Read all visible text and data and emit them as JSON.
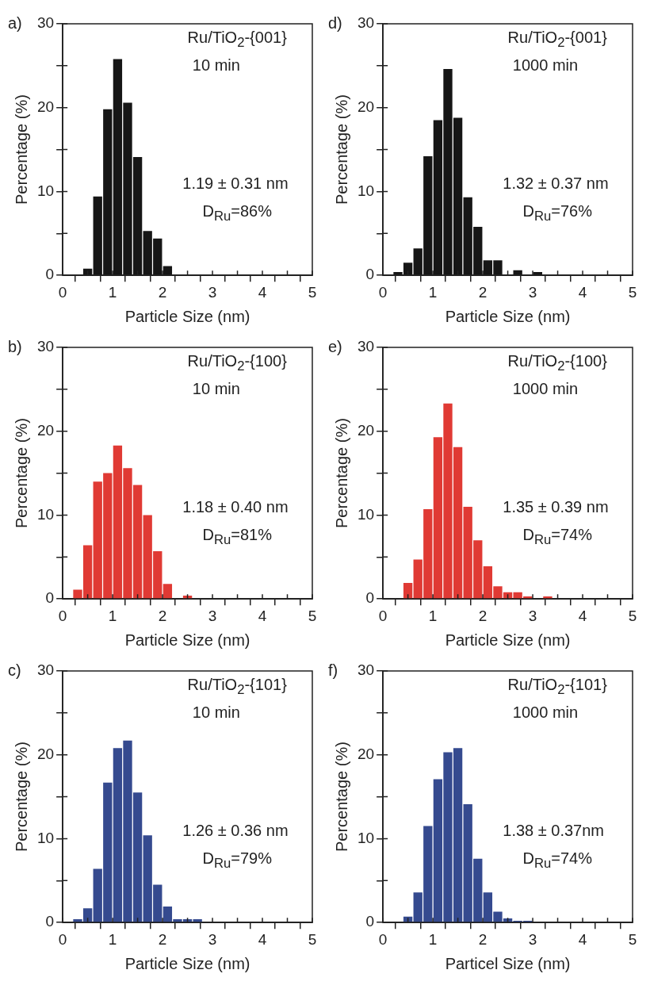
{
  "chart_data": [
    {
      "type": "histogram",
      "title": "a)",
      "xlabel": "Particle Size (nm)",
      "ylabel": "Percentage (%)",
      "color": "#161616",
      "bins": [
        0.4,
        0.6,
        0.8,
        1.0,
        1.2,
        1.4,
        1.6,
        1.8,
        2.0,
        2.2
      ],
      "values": [
        0.8,
        9.4,
        19.8,
        25.8,
        20.6,
        14.1,
        5.3,
        4.4,
        1.1
      ],
      "xlim": [
        0,
        5
      ],
      "xticks": [
        0,
        {
          "value": 0.5,
          "label": null
        },
        1,
        {
          "value": 1.5,
          "label": null
        },
        2,
        {
          "value": 2.5,
          "label": null
        },
        3,
        {
          "value": 3.5,
          "label": null
        },
        4,
        {
          "value": 4.5,
          "label": null
        },
        5
      ],
      "ylim": [
        0,
        30
      ],
      "yticks": [
        0,
        {
          "value": 5,
          "label": null
        },
        10,
        {
          "value": 15,
          "label": null
        },
        20,
        {
          "value": 25,
          "label": null
        },
        30
      ],
      "annotations": [
        "Ru/TiO$_{2}$-{001}",
        "10 min",
        "1.19 ± 0.31 nm",
        "D$_{Ru}$=86%"
      ]
    },
    {
      "type": "histogram",
      "title": "d)",
      "xlabel": "Particle Size (nm)",
      "ylabel": "Percentage (%)",
      "color": "#161616",
      "bins": [
        0.2,
        0.4,
        0.6,
        0.8,
        1.0,
        1.2,
        1.4,
        1.6,
        1.8,
        2.0,
        2.2,
        2.4,
        2.6,
        2.8,
        3.0,
        3.2
      ],
      "values": [
        0.4,
        1.5,
        3.2,
        14.2,
        18.5,
        24.6,
        18.8,
        9.3,
        5.8,
        1.8,
        1.8,
        0,
        0.6,
        0,
        0.4
      ],
      "xlim": [
        0,
        5
      ],
      "xticks": [
        0,
        {
          "value": 0.5,
          "label": null
        },
        1,
        {
          "value": 1.5,
          "label": null
        },
        2,
        {
          "value": 2.5,
          "label": null
        },
        3,
        {
          "value": 3.5,
          "label": null
        },
        4,
        {
          "value": 4.5,
          "label": null
        },
        5
      ],
      "ylim": [
        0,
        30
      ],
      "yticks": [
        0,
        {
          "value": 5,
          "label": null
        },
        10,
        {
          "value": 15,
          "label": null
        },
        20,
        {
          "value": 25,
          "label": null
        },
        30
      ],
      "annotations": [
        "Ru/TiO$_{2}$-{001}",
        "1000 min",
        "1.32 ± 0.37 nm",
        "D$_{Ru}$=76%"
      ]
    },
    {
      "type": "histogram",
      "title": "b)",
      "xlabel": "Particle Size (nm)",
      "ylabel": "Percentage (%)",
      "color": "#e03a34",
      "bins": [
        0.2,
        0.4,
        0.6,
        0.8,
        1.0,
        1.2,
        1.4,
        1.6,
        1.8,
        2.0,
        2.2,
        2.4,
        2.6
      ],
      "values": [
        1.1,
        6.4,
        14,
        15,
        18.3,
        15.6,
        13.6,
        10,
        5.7,
        1.8,
        0,
        0.4
      ],
      "xlim": [
        0,
        5
      ],
      "xticks": [
        0,
        {
          "value": 0.5,
          "label": null
        },
        1,
        {
          "value": 1.5,
          "label": null
        },
        2,
        {
          "value": 2.5,
          "label": null
        },
        3,
        {
          "value": 3.5,
          "label": null
        },
        4,
        {
          "value": 4.5,
          "label": null
        },
        5
      ],
      "ylim": [
        0,
        30
      ],
      "yticks": [
        0,
        {
          "value": 5,
          "label": null
        },
        10,
        {
          "value": 15,
          "label": null
        },
        20,
        {
          "value": 25,
          "label": null
        },
        30
      ],
      "annotations": [
        "Ru/TiO$_{2}$-{100}",
        "10 min",
        "1.18 ± 0.40 nm",
        "D$_{Ru}$=81%"
      ]
    },
    {
      "type": "histogram",
      "title": "e)",
      "xlabel": "Particle Size (nm)",
      "ylabel": "Percentage (%)",
      "color": "#e03a34",
      "bins": [
        0.4,
        0.6,
        0.8,
        1.0,
        1.2,
        1.4,
        1.6,
        1.8,
        2.0,
        2.2,
        2.4,
        2.6,
        2.8,
        3.0,
        3.2,
        3.4
      ],
      "values": [
        1.9,
        4.7,
        10.7,
        19.3,
        23.3,
        18.1,
        11,
        7,
        3.9,
        1.5,
        0.8,
        0.8,
        0.3,
        0,
        0.3
      ],
      "xlim": [
        0,
        5
      ],
      "xticks": [
        0,
        {
          "value": 0.5,
          "label": null
        },
        1,
        {
          "value": 1.5,
          "label": null
        },
        2,
        {
          "value": 2.5,
          "label": null
        },
        3,
        {
          "value": 3.5,
          "label": null
        },
        4,
        {
          "value": 4.5,
          "label": null
        },
        5
      ],
      "ylim": [
        0,
        30
      ],
      "yticks": [
        0,
        {
          "value": 5,
          "label": null
        },
        10,
        {
          "value": 15,
          "label": null
        },
        20,
        {
          "value": 25,
          "label": null
        },
        30
      ],
      "annotations": [
        "Ru/TiO$_{2}$-{100}",
        "1000 min",
        "1.35 ± 0.39 nm",
        "D$_{Ru}$=74%"
      ]
    },
    {
      "type": "histogram",
      "title": "c)",
      "xlabel": "Particle Size (nm)",
      "ylabel": "Percentage (%)",
      "color": "#354a8f",
      "bins": [
        0.2,
        0.4,
        0.6,
        0.8,
        1.0,
        1.2,
        1.4,
        1.6,
        1.8,
        2.0,
        2.2,
        2.4,
        2.6,
        2.8
      ],
      "values": [
        0.4,
        1.7,
        6.4,
        16.7,
        20.8,
        21.7,
        15.5,
        10.4,
        4.5,
        1.9,
        0.4,
        0.4,
        0.4
      ],
      "xlim": [
        0,
        5
      ],
      "xticks": [
        0,
        {
          "value": 0.5,
          "label": null
        },
        1,
        {
          "value": 1.5,
          "label": null
        },
        2,
        {
          "value": 2.5,
          "label": null
        },
        3,
        {
          "value": 3.5,
          "label": null
        },
        4,
        {
          "value": 4.5,
          "label": null
        },
        5
      ],
      "ylim": [
        0,
        30
      ],
      "yticks": [
        0,
        {
          "value": 5,
          "label": null
        },
        10,
        {
          "value": 15,
          "label": null
        },
        20,
        {
          "value": 25,
          "label": null
        },
        30
      ],
      "annotations": [
        "Ru/TiO$_{2}$-{101}",
        "10 min",
        "1.26 ± 0.36 nm",
        "D$_{Ru}$=79%"
      ]
    },
    {
      "type": "histogram",
      "title": "f)",
      "xlabel": "Particel Size (nm)",
      "ylabel": "Percentage (%)",
      "color": "#354a8f",
      "bins": [
        0.4,
        0.6,
        0.8,
        1.0,
        1.2,
        1.4,
        1.6,
        1.8,
        2.0,
        2.2,
        2.4,
        2.6,
        2.8,
        3.0
      ],
      "values": [
        0.7,
        3.6,
        11.5,
        17.1,
        20.3,
        20.8,
        14.1,
        7.6,
        3.6,
        1.3,
        0.5,
        0.2,
        0.2
      ],
      "xlim": [
        0,
        5
      ],
      "xticks": [
        0,
        {
          "value": 0.5,
          "label": null
        },
        1,
        {
          "value": 1.5,
          "label": null
        },
        2,
        {
          "value": 2.5,
          "label": null
        },
        3,
        {
          "value": 3.5,
          "label": null
        },
        4,
        {
          "value": 4.5,
          "label": null
        },
        5
      ],
      "ylim": [
        0,
        30
      ],
      "yticks": [
        0,
        {
          "value": 5,
          "label": null
        },
        10,
        {
          "value": 15,
          "label": null
        },
        20,
        {
          "value": 25,
          "label": null
        },
        30
      ],
      "annotations": [
        "Ru/TiO$_{2}$-{101}",
        "1000 min",
        "1.38 ± 0.37nm",
        "D$_{Ru}$=74%"
      ]
    }
  ]
}
